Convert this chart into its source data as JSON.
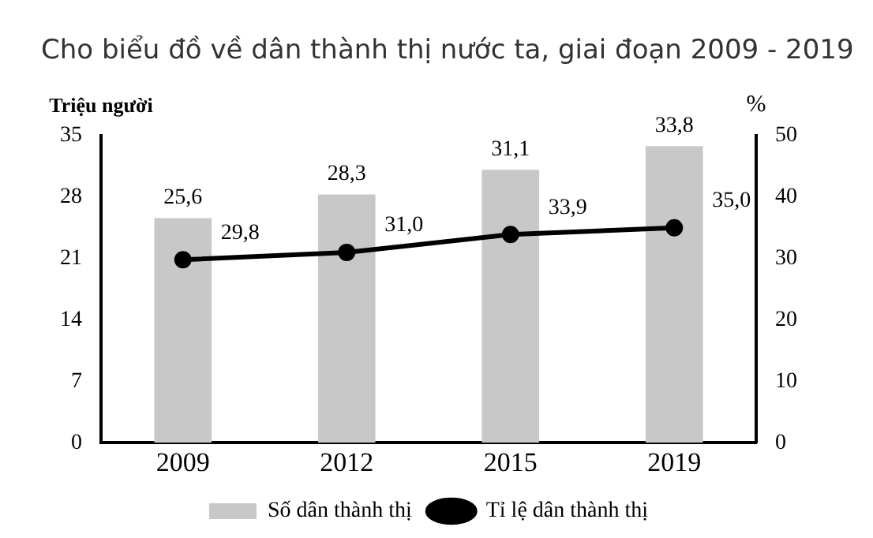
{
  "chart_data": {
    "type": "bar",
    "title": "Cho biểu đồ về dân thành thị nước ta, giai đoạn 2009 - 2019",
    "ylabel": "Triệu người",
    "y2label": "%",
    "categories": [
      "2009",
      "2012",
      "2015",
      "2019"
    ],
    "series": [
      {
        "name": "Số dân thành thị",
        "color": "#c8c8c8",
        "values": [
          25.6,
          28.3,
          31.1,
          33.8
        ],
        "value_labels": [
          "25,6",
          "28,3",
          "31,1",
          "33,8"
        ]
      },
      {
        "name": "Tỉ lệ dân thành thị",
        "type": "line",
        "axis": "y2",
        "color": "#000000",
        "values": [
          29.8,
          31.0,
          33.9,
          35.0
        ],
        "value_labels": [
          "29,8",
          "31,0",
          "33,9",
          "35,0"
        ]
      }
    ],
    "ylim": [
      0,
      35
    ],
    "yticks": [
      0,
      7,
      14,
      21,
      28,
      35
    ],
    "y2lim": [
      0,
      50
    ],
    "y2ticks": [
      0,
      10,
      20,
      30,
      40,
      50
    ],
    "grid": false,
    "legend": "bottom",
    "marker": "circle",
    "line_style": "solid"
  }
}
